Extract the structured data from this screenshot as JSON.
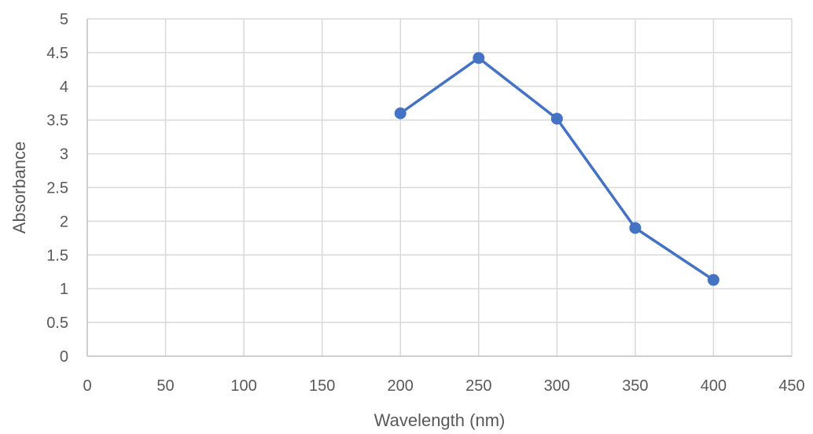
{
  "chart_data": {
    "type": "scatter",
    "title": "",
    "xlabel": "Wavelength (nm)",
    "ylabel": "Absorbance",
    "xlim": [
      0,
      450
    ],
    "ylim": [
      0,
      5
    ],
    "x_ticks": [
      "0",
      "50",
      "100",
      "150",
      "200",
      "250",
      "300",
      "350",
      "400",
      "450"
    ],
    "y_ticks": [
      "0",
      "0.5",
      "1",
      "1.5",
      "2",
      "2.5",
      "3",
      "3.5",
      "4",
      "4.5",
      "5"
    ],
    "grid": true,
    "legend": "none",
    "series": [
      {
        "color": "#4472c4",
        "marker": "circle",
        "line": "straight",
        "points": [
          {
            "x": 200,
            "y": 3.6
          },
          {
            "x": 250,
            "y": 4.42
          },
          {
            "x": 300,
            "y": 3.52
          },
          {
            "x": 350,
            "y": 1.9
          },
          {
            "x": 400,
            "y": 1.13
          }
        ]
      }
    ]
  }
}
